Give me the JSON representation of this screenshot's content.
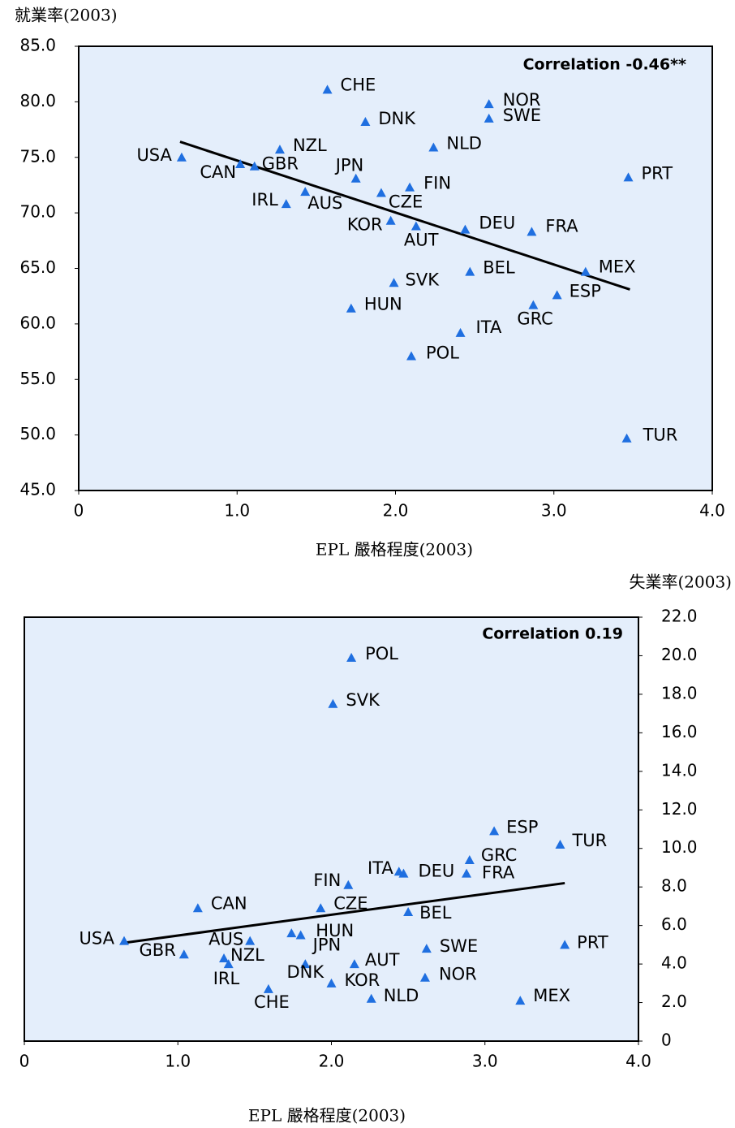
{
  "chart_data": [
    {
      "type": "scatter",
      "y_label": "就業率(2003)",
      "x_label": "EPL 嚴格程度(2003)",
      "annotation": "Correlation -0.46**",
      "color": "#1f6fe0",
      "y_axis": "left",
      "labels": [
        "USA",
        "CAN",
        "GBR",
        "NZL",
        "CHE",
        "DNK",
        "NOR",
        "SWE",
        "NLD",
        "JPN",
        "FIN",
        "PRT",
        "IRL",
        "AUS",
        "CZE",
        "KOR",
        "AUT",
        "DEU",
        "FRA",
        "MEX",
        "BEL",
        "SVK",
        "ESP",
        "HUN",
        "GRC",
        "ITA",
        "POL",
        "TUR"
      ],
      "x": [
        0.65,
        1.02,
        1.11,
        1.27,
        1.57,
        1.81,
        2.59,
        2.59,
        2.24,
        1.75,
        2.09,
        3.47,
        1.31,
        1.43,
        1.91,
        1.97,
        2.13,
        2.44,
        2.86,
        3.2,
        2.47,
        1.99,
        3.02,
        1.72,
        2.87,
        2.41,
        2.1,
        3.46
      ],
      "values": [
        75.0,
        74.4,
        74.2,
        75.7,
        81.1,
        78.2,
        79.8,
        78.5,
        75.9,
        73.1,
        72.3,
        73.2,
        70.8,
        71.9,
        71.8,
        69.3,
        68.8,
        68.5,
        68.3,
        64.7,
        64.7,
        63.7,
        62.6,
        61.4,
        61.7,
        59.2,
        57.1,
        49.7
      ],
      "trend_line": {
        "x": [
          0.64,
          3.48
        ],
        "values": [
          76.4,
          63.1
        ]
      },
      "xlim": [
        0,
        4
      ],
      "xticks": [
        0,
        {
          "value": 1,
          "label": "1.0"
        },
        {
          "value": 2,
          "label": "2.0"
        },
        {
          "value": 3,
          "label": "3.0"
        },
        {
          "value": 4,
          "label": "4.0"
        }
      ],
      "ylim": [
        45,
        85
      ],
      "yticks": [
        {
          "value": 45,
          "label": "45.0"
        },
        {
          "value": 50,
          "label": "50.0"
        },
        {
          "value": 55,
          "label": "55.0"
        },
        {
          "value": 60,
          "label": "60.0"
        },
        {
          "value": 65,
          "label": "65.0"
        },
        {
          "value": 70,
          "label": "70.0"
        },
        {
          "value": 75,
          "label": "75.0"
        },
        {
          "value": 80,
          "label": "80.0"
        },
        {
          "value": 85,
          "label": "85.0"
        }
      ]
    },
    {
      "type": "scatter",
      "y_label": "失業率(2003)",
      "x_label": "EPL 嚴格程度(2003)",
      "annotation": "Correlation 0.19",
      "color": "#1f6fe0",
      "y_axis": "right",
      "labels": [
        "POL",
        "SVK",
        "ESP",
        "TUR",
        "GRC",
        "FRA",
        "DEU",
        "ITA",
        "FIN",
        "CAN",
        "CZE",
        "BEL",
        "USA",
        "GBR",
        "AUS",
        "NZL",
        "IRL",
        "HUN",
        "JPN",
        "DNK",
        "AUT",
        "KOR",
        "CHE",
        "NLD",
        "SWE",
        "NOR",
        "PRT",
        "MEX"
      ],
      "x": [
        2.13,
        2.01,
        3.06,
        3.49,
        2.9,
        2.88,
        2.47,
        2.44,
        2.11,
        1.13,
        1.93,
        2.5,
        0.65,
        1.04,
        1.47,
        1.3,
        1.33,
        1.74,
        1.8,
        1.83,
        2.15,
        2.0,
        1.59,
        2.26,
        2.62,
        2.61,
        3.52,
        3.23
      ],
      "values": [
        19.9,
        17.5,
        10.9,
        10.2,
        9.4,
        8.7,
        8.7,
        8.8,
        8.1,
        6.9,
        6.9,
        6.7,
        5.2,
        4.5,
        5.2,
        4.3,
        4.0,
        5.6,
        5.5,
        4.0,
        4.0,
        3.0,
        2.7,
        2.2,
        4.8,
        3.3,
        5.0,
        2.1
      ],
      "trend_line": {
        "x": [
          0.65,
          3.52
        ],
        "values": [
          5.1,
          8.2
        ]
      },
      "xlim": [
        0,
        4
      ],
      "xticks": [
        0,
        {
          "value": 1,
          "label": "1.0"
        },
        {
          "value": 2,
          "label": "2.0"
        },
        {
          "value": 3,
          "label": "3.0"
        },
        {
          "value": 4,
          "label": "4.0"
        }
      ],
      "ylim": [
        0,
        22
      ],
      "yticks": [
        0,
        {
          "value": 2,
          "label": "2.0"
        },
        {
          "value": 4,
          "label": "4.0"
        },
        {
          "value": 6,
          "label": "6.0"
        },
        {
          "value": 8,
          "label": "8.0"
        },
        {
          "value": 10,
          "label": "10.0"
        },
        {
          "value": 12,
          "label": "12.0"
        },
        {
          "value": 14,
          "label": "14.0"
        },
        {
          "value": 16,
          "label": "16.0"
        },
        {
          "value": 18,
          "label": "18.0"
        },
        {
          "value": 20,
          "label": "20.0"
        },
        {
          "value": 22,
          "label": "22.0"
        }
      ]
    }
  ]
}
